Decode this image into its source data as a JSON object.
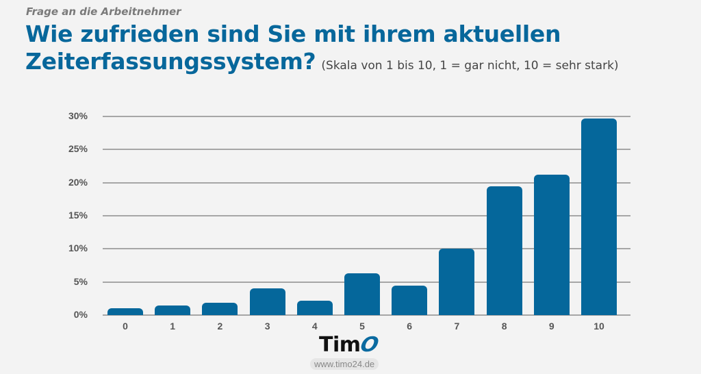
{
  "header": {
    "kicker": "Frage an die Arbeitnehmer",
    "title_line1": "Wie zufrieden sind Sie mit ihrem aktuellen",
    "title_line2": "Zeiterfassungssystem?",
    "subtitle": "(Skala von 1 bis 10, 1 = gar nicht, 10 = sehr stark)"
  },
  "colors": {
    "bar": "#05679b",
    "title": "#07679b",
    "kicker": "#7a7a7a",
    "gridline": "#a6a6a6",
    "background": "#f3f3f3"
  },
  "chart_data": {
    "type": "bar",
    "title": "Wie zufrieden sind Sie mit ihrem aktuellen Zeiterfassungssystem?",
    "subtitle": "(Skala von 1 bis 10, 1 = gar nicht, 10 = sehr stark)",
    "categories": [
      "0",
      "1",
      "2",
      "3",
      "4",
      "5",
      "6",
      "7",
      "8",
      "9",
      "10"
    ],
    "values": [
      1.0,
      1.5,
      1.9,
      4.0,
      2.2,
      6.3,
      4.4,
      10.0,
      19.5,
      21.2,
      29.7
    ],
    "unit": "%",
    "xlabel": "",
    "ylabel": "",
    "ylim": [
      0,
      30
    ],
    "yticks": [
      "0%",
      "5%",
      "10%",
      "15%",
      "20%",
      "25%",
      "30%"
    ],
    "grid": true,
    "legend": null
  },
  "footer": {
    "logo_text": "Tim",
    "logo_o": "O",
    "url": "www.timo24.de"
  }
}
